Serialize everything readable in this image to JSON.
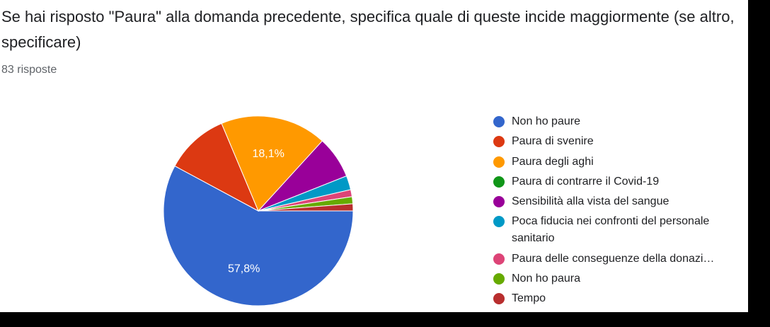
{
  "question": "Se hai risposto \"Paura\" alla domanda precedente, specifica quale di queste incide maggiormente (se altro, specificare)",
  "responses": "83 risposte",
  "chart_data": {
    "type": "pie",
    "categories": [
      "Non ho paure",
      "Paura di svenire",
      "Paura degli aghi",
      "Paura di contrarre il Covid-19",
      "Sensibilità alla vista del sangue",
      "Poca fiducia nei confronti del personale sanitario",
      "Paura delle conseguenze della donazi…",
      "Non ho paura",
      "Tempo"
    ],
    "values": [
      57.8,
      10.8,
      18.1,
      0,
      7.2,
      2.4,
      1.2,
      1.2,
      1.2
    ],
    "labels": [
      "57,8%",
      "",
      "18,1%",
      "",
      "",
      "",
      "",
      "",
      ""
    ],
    "colors": [
      "#3366cc",
      "#dc3912",
      "#ff9900",
      "#109618",
      "#990099",
      "#0099c6",
      "#dd4477",
      "#66aa00",
      "#b82e2e"
    ],
    "legend_position": "right"
  }
}
